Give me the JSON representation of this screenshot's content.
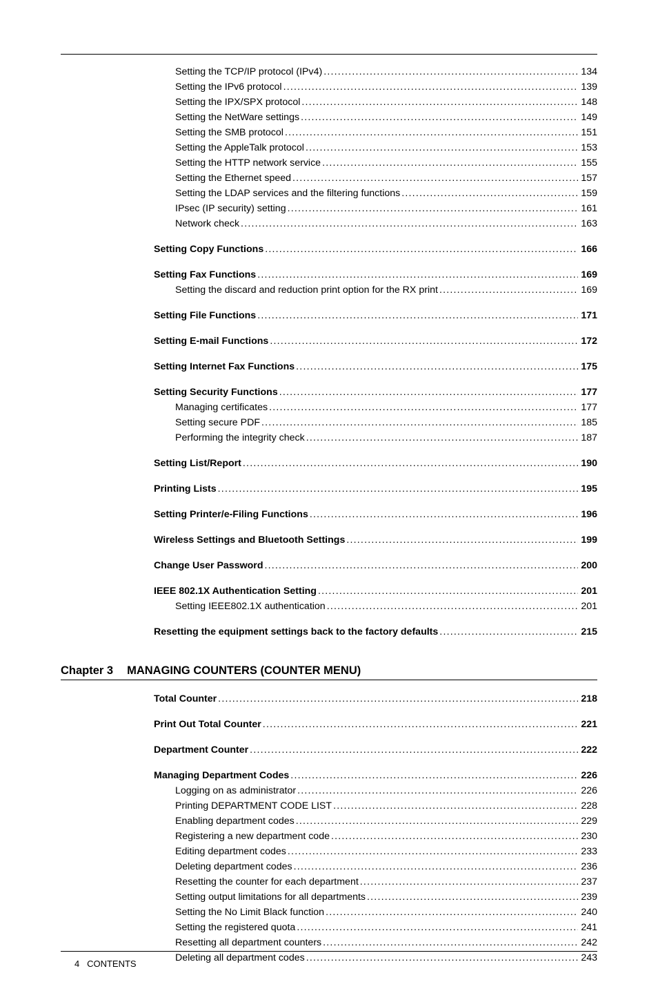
{
  "footer": {
    "page_number": "4",
    "label": "CONTENTS"
  },
  "sections": [
    {
      "spacer_before": false,
      "items": [
        {
          "level": 2,
          "bold": false,
          "label": "Setting the TCP/IP protocol (IPv4)",
          "page": "134"
        },
        {
          "level": 2,
          "bold": false,
          "label": "Setting the IPv6 protocol",
          "page": "139"
        },
        {
          "level": 2,
          "bold": false,
          "label": "Setting the IPX/SPX protocol",
          "page": "148"
        },
        {
          "level": 2,
          "bold": false,
          "label": "Setting the NetWare settings",
          "page": "149"
        },
        {
          "level": 2,
          "bold": false,
          "label": "Setting the SMB protocol",
          "page": "151"
        },
        {
          "level": 2,
          "bold": false,
          "label": "Setting the AppleTalk protocol",
          "page": "153"
        },
        {
          "level": 2,
          "bold": false,
          "label": "Setting the HTTP network service",
          "page": "155"
        },
        {
          "level": 2,
          "bold": false,
          "label": "Setting the Ethernet speed",
          "page": "157"
        },
        {
          "level": 2,
          "bold": false,
          "label": "Setting the LDAP services and the filtering functions",
          "page": "159"
        },
        {
          "level": 2,
          "bold": false,
          "label": "IPsec (IP security) setting",
          "page": "161"
        },
        {
          "level": 2,
          "bold": false,
          "label": "Network check",
          "page": "163"
        }
      ]
    },
    {
      "spacer_before": true,
      "items": [
        {
          "level": 1,
          "bold": true,
          "label": "Setting Copy Functions",
          "page": "166"
        }
      ]
    },
    {
      "spacer_before": true,
      "items": [
        {
          "level": 1,
          "bold": true,
          "label": "Setting Fax Functions",
          "page": "169"
        },
        {
          "level": 2,
          "bold": false,
          "label": "Setting the discard and reduction print option for the RX print",
          "page": "169"
        }
      ]
    },
    {
      "spacer_before": true,
      "items": [
        {
          "level": 1,
          "bold": true,
          "label": "Setting File Functions",
          "page": "171"
        }
      ]
    },
    {
      "spacer_before": true,
      "items": [
        {
          "level": 1,
          "bold": true,
          "label": "Setting E-mail Functions",
          "page": "172"
        }
      ]
    },
    {
      "spacer_before": true,
      "items": [
        {
          "level": 1,
          "bold": true,
          "label": "Setting Internet Fax Functions",
          "page": "175"
        }
      ]
    },
    {
      "spacer_before": true,
      "items": [
        {
          "level": 1,
          "bold": true,
          "label": "Setting Security Functions",
          "page": "177"
        },
        {
          "level": 2,
          "bold": false,
          "label": "Managing certificates",
          "page": "177"
        },
        {
          "level": 2,
          "bold": false,
          "label": "Setting secure PDF",
          "page": "185"
        },
        {
          "level": 2,
          "bold": false,
          "label": "Performing the integrity check",
          "page": "187"
        }
      ]
    },
    {
      "spacer_before": true,
      "items": [
        {
          "level": 1,
          "bold": true,
          "label": "Setting List/Report",
          "page": "190"
        }
      ]
    },
    {
      "spacer_before": true,
      "items": [
        {
          "level": 1,
          "bold": true,
          "label": "Printing Lists",
          "page": "195"
        }
      ]
    },
    {
      "spacer_before": true,
      "items": [
        {
          "level": 1,
          "bold": true,
          "label": "Setting Printer/e-Filing Functions",
          "page": "196"
        }
      ]
    },
    {
      "spacer_before": true,
      "items": [
        {
          "level": 1,
          "bold": true,
          "label": "Wireless Settings and Bluetooth Settings",
          "page": "199"
        }
      ]
    },
    {
      "spacer_before": true,
      "items": [
        {
          "level": 1,
          "bold": true,
          "label": "Change User Password",
          "page": "200"
        }
      ]
    },
    {
      "spacer_before": true,
      "items": [
        {
          "level": 1,
          "bold": true,
          "label": "IEEE 802.1X Authentication Setting",
          "page": "201"
        },
        {
          "level": 2,
          "bold": false,
          "label": "Setting IEEE802.1X authentication",
          "page": "201"
        }
      ]
    },
    {
      "spacer_before": true,
      "items": [
        {
          "level": 1,
          "bold": true,
          "label": "Resetting the equipment settings back to the factory defaults",
          "page": "215"
        }
      ]
    }
  ],
  "chapter": {
    "label": "Chapter 3",
    "title": "MANAGING COUNTERS (COUNTER MENU)",
    "sections": [
      {
        "spacer_before": false,
        "items": [
          {
            "level": 1,
            "bold": true,
            "label": "Total Counter",
            "page": "218"
          }
        ]
      },
      {
        "spacer_before": true,
        "items": [
          {
            "level": 1,
            "bold": true,
            "label": "Print Out Total Counter",
            "page": "221"
          }
        ]
      },
      {
        "spacer_before": true,
        "items": [
          {
            "level": 1,
            "bold": true,
            "label": "Department Counter",
            "page": "222"
          }
        ]
      },
      {
        "spacer_before": true,
        "items": [
          {
            "level": 1,
            "bold": true,
            "label": "Managing Department Codes",
            "page": "226"
          },
          {
            "level": 2,
            "bold": false,
            "label": "Logging on as administrator",
            "page": "226"
          },
          {
            "level": 2,
            "bold": false,
            "label": "Printing DEPARTMENT CODE LIST",
            "page": "228"
          },
          {
            "level": 2,
            "bold": false,
            "label": "Enabling department codes",
            "page": "229"
          },
          {
            "level": 2,
            "bold": false,
            "label": "Registering a new department code",
            "page": "230"
          },
          {
            "level": 2,
            "bold": false,
            "label": "Editing department codes",
            "page": "233"
          },
          {
            "level": 2,
            "bold": false,
            "label": "Deleting department codes",
            "page": "236"
          },
          {
            "level": 2,
            "bold": false,
            "label": "Resetting the counter for each department",
            "page": "237"
          },
          {
            "level": 2,
            "bold": false,
            "label": "Setting output limitations for all departments",
            "page": "239"
          },
          {
            "level": 2,
            "bold": false,
            "label": "Setting the No Limit Black function",
            "page": "240"
          },
          {
            "level": 2,
            "bold": false,
            "label": "Setting the registered quota",
            "page": "241"
          },
          {
            "level": 2,
            "bold": false,
            "label": "Resetting all department counters",
            "page": "242"
          },
          {
            "level": 2,
            "bold": false,
            "label": "Deleting all department codes",
            "page": "243"
          }
        ]
      }
    ]
  }
}
